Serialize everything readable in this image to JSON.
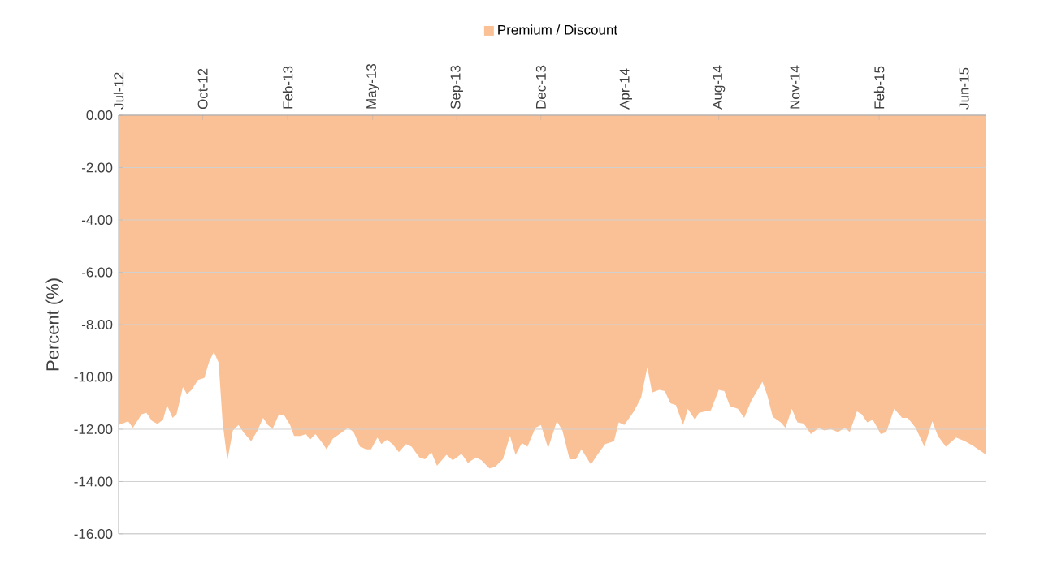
{
  "chart_data": {
    "type": "area",
    "ylabel": "Percent (%)",
    "legend": "top",
    "grid": "y",
    "x": [
      "2012-07-06",
      "2012-07-18",
      "2012-07-24",
      "2012-08-04",
      "2012-08-10",
      "2012-08-17",
      "2012-08-24",
      "2012-08-31",
      "2012-09-05",
      "2012-09-12",
      "2012-09-17",
      "2012-09-25",
      "2012-09-30",
      "2012-10-06",
      "2012-10-14",
      "2012-10-22",
      "2012-10-28",
      "2012-11-03",
      "2012-11-09",
      "2012-11-14",
      "2012-11-20",
      "2012-11-27",
      "2012-12-04",
      "2012-12-11",
      "2012-12-20",
      "2012-12-28",
      "2013-01-04",
      "2013-01-10",
      "2013-01-16",
      "2013-01-24",
      "2013-01-31",
      "2013-02-07",
      "2013-02-12",
      "2013-02-20",
      "2013-02-27",
      "2013-03-04",
      "2013-03-11",
      "2013-03-18",
      "2013-03-25",
      "2013-04-02",
      "2013-04-12",
      "2013-04-21",
      "2013-04-28",
      "2013-05-06",
      "2013-05-14",
      "2013-05-20",
      "2013-05-28",
      "2013-06-02",
      "2013-06-09",
      "2013-06-16",
      "2013-06-24",
      "2013-07-03",
      "2013-07-10",
      "2013-07-20",
      "2013-07-27",
      "2013-08-04",
      "2013-08-11",
      "2013-08-23",
      "2013-08-31",
      "2013-09-11",
      "2013-09-19",
      "2013-09-29",
      "2013-10-06",
      "2013-10-16",
      "2013-10-23",
      "2013-11-02",
      "2013-11-11",
      "2013-11-18",
      "2013-11-26",
      "2013-12-03",
      "2013-12-13",
      "2013-12-20",
      "2013-12-29",
      "2014-01-09",
      "2014-01-16",
      "2014-01-25",
      "2014-02-02",
      "2014-02-09",
      "2014-02-21",
      "2014-03-01",
      "2014-03-11",
      "2014-03-22",
      "2014-03-28",
      "2014-04-04",
      "2014-04-16",
      "2014-04-25",
      "2014-05-03",
      "2014-05-09",
      "2014-05-18",
      "2014-05-25",
      "2014-06-01",
      "2014-06-08",
      "2014-06-17",
      "2014-06-23",
      "2014-07-02",
      "2014-07-07",
      "2014-07-15",
      "2014-07-22",
      "2014-08-01",
      "2014-08-08",
      "2014-08-15",
      "2014-08-25",
      "2014-09-02",
      "2014-09-11",
      "2014-09-25",
      "2014-10-01",
      "2014-10-08",
      "2014-10-18",
      "2014-10-24",
      "2014-11-01",
      "2014-11-08",
      "2014-11-16",
      "2014-11-25",
      "2014-12-05",
      "2014-12-12",
      "2014-12-20",
      "2014-12-29",
      "2015-01-07",
      "2015-01-13",
      "2015-01-22",
      "2015-01-28",
      "2015-02-04",
      "2015-02-11",
      "2015-02-21",
      "2015-02-28",
      "2015-03-10",
      "2015-03-20",
      "2015-03-27",
      "2015-04-06",
      "2015-04-17",
      "2015-04-27",
      "2015-05-04",
      "2015-05-14",
      "2015-05-27",
      "2015-06-07",
      "2015-06-17",
      "2015-07-04"
    ],
    "series": [
      {
        "name": "Premium / Discount",
        "color": "#fbc196",
        "values": [
          -11.84,
          -11.7,
          -11.95,
          -11.43,
          -11.37,
          -11.68,
          -11.8,
          -11.64,
          -11.08,
          -11.57,
          -11.43,
          -10.39,
          -10.66,
          -10.5,
          -10.12,
          -10.04,
          -9.42,
          -9.05,
          -9.46,
          -11.74,
          -13.19,
          -12.05,
          -11.84,
          -12.15,
          -12.46,
          -12.05,
          -11.57,
          -11.84,
          -11.99,
          -11.43,
          -11.49,
          -11.84,
          -12.26,
          -12.26,
          -12.19,
          -12.4,
          -12.19,
          -12.46,
          -12.77,
          -12.36,
          -12.15,
          -11.95,
          -12.11,
          -12.67,
          -12.77,
          -12.77,
          -12.32,
          -12.57,
          -12.4,
          -12.57,
          -12.88,
          -12.57,
          -12.67,
          -13.08,
          -13.15,
          -12.88,
          -13.4,
          -12.98,
          -13.19,
          -12.94,
          -13.29,
          -13.08,
          -13.19,
          -13.5,
          -13.44,
          -13.15,
          -12.26,
          -12.98,
          -12.53,
          -12.67,
          -11.95,
          -11.84,
          -12.73,
          -11.7,
          -12.05,
          -13.15,
          -13.15,
          -12.77,
          -13.35,
          -12.98,
          -12.57,
          -12.46,
          -11.74,
          -11.84,
          -11.32,
          -10.81,
          -9.63,
          -10.6,
          -10.5,
          -10.54,
          -11.01,
          -11.08,
          -11.84,
          -11.22,
          -11.64,
          -11.37,
          -11.32,
          -11.28,
          -10.5,
          -10.54,
          -11.12,
          -11.22,
          -11.57,
          -10.91,
          -10.19,
          -10.7,
          -11.53,
          -11.74,
          -11.95,
          -11.22,
          -11.74,
          -11.78,
          -12.19,
          -11.95,
          -12.05,
          -11.99,
          -12.11,
          -11.95,
          -12.11,
          -11.32,
          -11.43,
          -11.74,
          -11.64,
          -12.19,
          -12.11,
          -11.22,
          -11.57,
          -11.57,
          -11.95,
          -12.67,
          -11.7,
          -12.26,
          -12.67,
          -12.32,
          -12.46,
          -12.63,
          -12.98
        ]
      }
    ],
    "xlim": [
      "2012-07-06",
      "2015-07-04"
    ],
    "xticks": [
      {
        "value": "2012-07-06",
        "label": "Jul-12"
      },
      {
        "value": "2012-10-20",
        "label": "Oct-12"
      },
      {
        "value": "2013-02-04",
        "label": "Feb-13"
      },
      {
        "value": "2013-05-22",
        "label": "May-13"
      },
      {
        "value": "2013-09-05",
        "label": "Sep-13"
      },
      {
        "value": "2013-12-20",
        "label": "Dec-13"
      },
      {
        "value": "2014-04-06",
        "label": "Apr-14"
      },
      {
        "value": "2014-08-01",
        "label": "Aug-14"
      },
      {
        "value": "2014-11-05",
        "label": "Nov-14"
      },
      {
        "value": "2015-02-19",
        "label": "Feb-15"
      },
      {
        "value": "2015-06-06",
        "label": "Jun-15"
      }
    ],
    "ylim": [
      -16,
      0
    ],
    "yticks": [
      {
        "value": -16,
        "label": "-16.00"
      },
      {
        "value": -14,
        "label": "-14.00"
      },
      {
        "value": -12,
        "label": "-12.00"
      },
      {
        "value": -10,
        "label": "-10.00"
      },
      {
        "value": -8,
        "label": "-8.00"
      },
      {
        "value": -6,
        "label": "-6.00"
      },
      {
        "value": -4,
        "label": "-4.00"
      },
      {
        "value": -2,
        "label": "-2.00"
      },
      {
        "value": 0,
        "label": "0.00"
      }
    ]
  }
}
